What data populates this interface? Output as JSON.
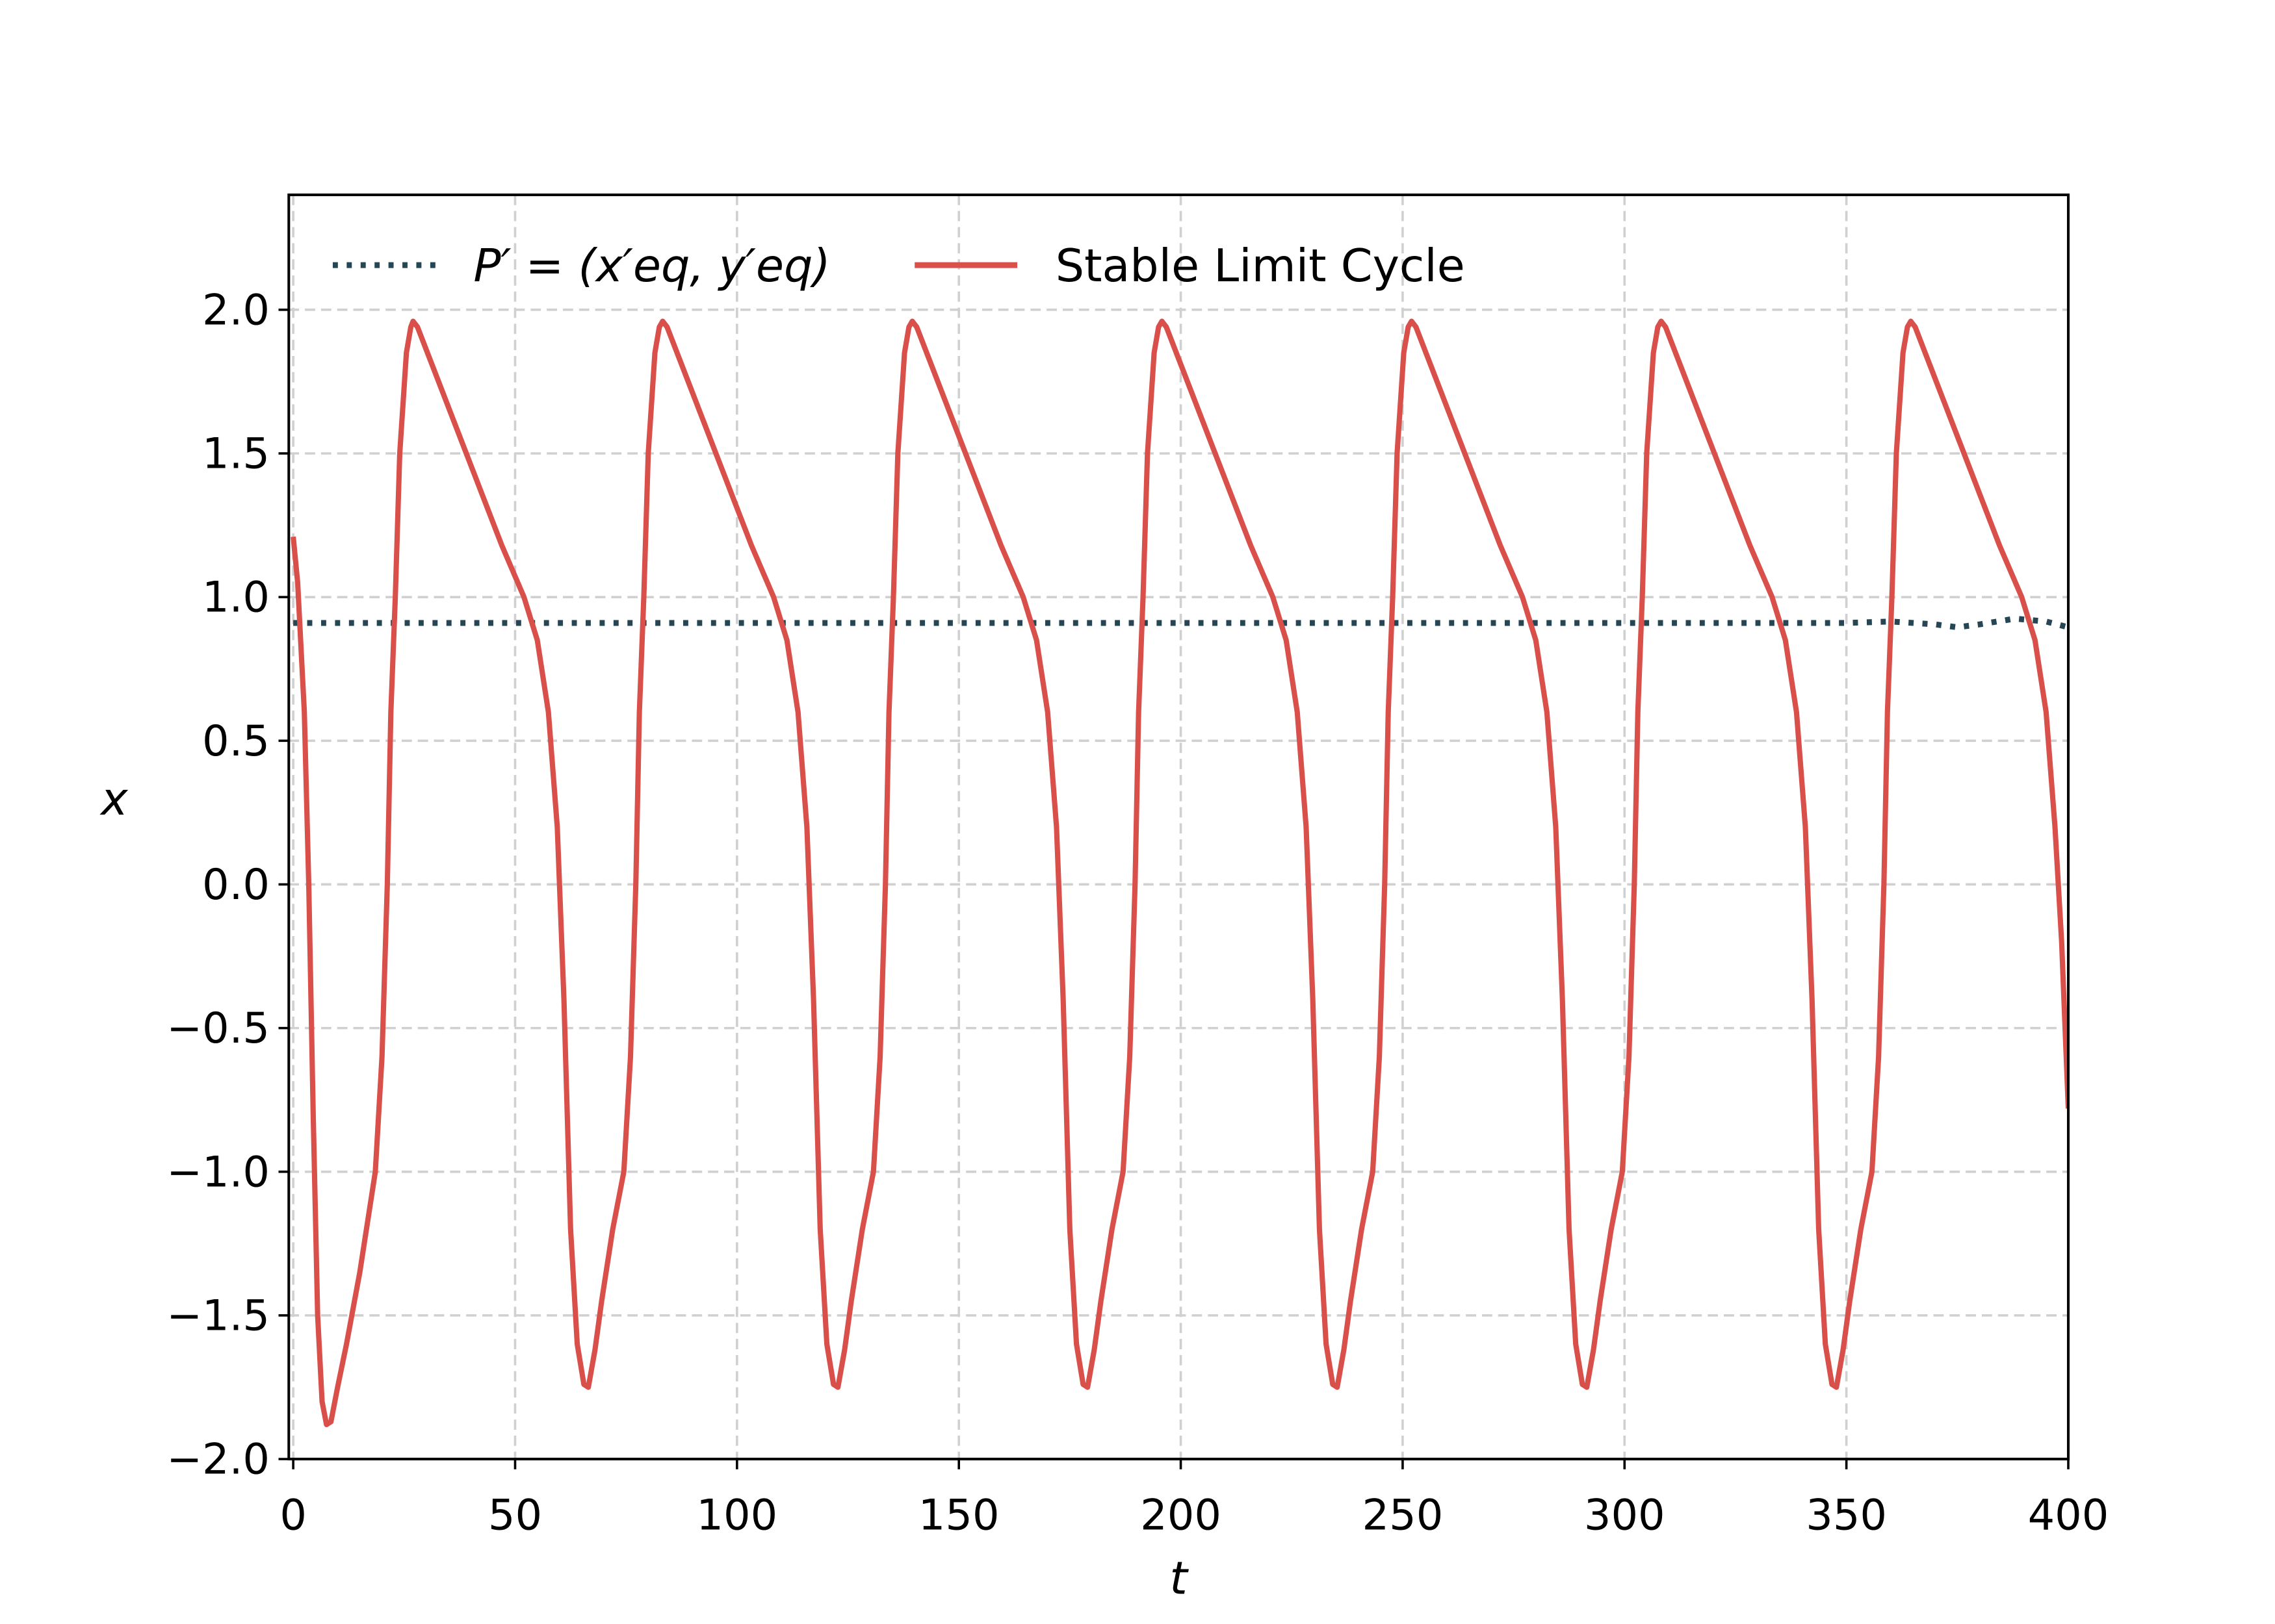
{
  "chart_data": {
    "type": "line",
    "xlabel": "t",
    "ylabel": "x",
    "xlim": [
      -1,
      400
    ],
    "ylim": [
      -2,
      2.4
    ],
    "xticks": [
      0,
      50,
      100,
      150,
      200,
      250,
      300,
      350,
      400
    ],
    "yticks": [
      {
        "value": -2.0,
        "label": "−2.0"
      },
      {
        "value": -1.5,
        "label": "−1.5"
      },
      {
        "value": -1.0,
        "label": "−1.0"
      },
      {
        "value": -0.5,
        "label": "−0.5"
      },
      {
        "value": 0.0,
        "label": "0.0"
      },
      {
        "value": 0.5,
        "label": "0.5"
      },
      {
        "value": 1.0,
        "label": "1.0"
      },
      {
        "value": 1.5,
        "label": "1.5"
      },
      {
        "value": 2.0,
        "label": "2.0"
      }
    ],
    "grid": true,
    "legend": "upper left",
    "series": [
      {
        "name": "P′ = (x′eq, y′eq)",
        "color": "#264653",
        "style": "dotted",
        "x": [
          0,
          100,
          200,
          300,
          350,
          360,
          370,
          375,
          380,
          388,
          395,
          400
        ],
        "values": [
          0.91,
          0.91,
          0.91,
          0.91,
          0.91,
          0.915,
          0.905,
          0.895,
          0.905,
          0.925,
          0.915,
          0.895
        ]
      },
      {
        "name": "Stable Limit Cycle",
        "color": "#d94f4a",
        "style": "solid",
        "x": [
          0,
          1,
          2.5,
          3.5,
          4.5,
          5.5,
          6.5,
          7.5,
          8.5,
          10,
          12,
          15,
          18.5,
          20,
          21.2,
          22,
          23,
          24,
          25.5,
          26.5,
          27,
          28,
          32,
          37,
          42,
          47,
          52,
          55,
          57.5,
          59.5,
          61,
          62.5,
          64,
          65.5,
          66.5,
          68,
          69.5,
          72,
          74.5,
          76,
          77.2,
          78,
          79,
          80,
          81.5,
          82.5,
          83.25,
          84.25,
          88.25,
          93.25,
          98.25,
          103.25,
          108.25,
          111.25,
          113.75,
          115.75,
          117.25,
          118.75,
          120.25,
          121.75,
          122.75,
          124.25,
          125.75,
          128.25,
          130.75,
          132.25,
          133.45,
          134.25,
          135.25,
          136.25,
          137.75,
          138.75,
          139.5,
          140.5,
          144.5,
          149.5,
          154.5,
          159.5,
          164.5,
          167.5,
          170,
          172,
          173.5,
          175,
          176.5,
          178,
          179,
          180.5,
          182,
          184.5,
          187,
          188.5,
          189.7,
          190.5,
          191.5,
          192.5,
          194,
          195,
          195.75,
          196.75,
          200.75,
          205.75,
          210.75,
          215.75,
          220.75,
          223.75,
          226.25,
          228.25,
          229.75,
          231.25,
          232.75,
          234.25,
          235.25,
          236.75,
          238.25,
          240.75,
          243.25,
          244.75,
          245.95,
          246.75,
          247.75,
          248.75,
          250.25,
          251.25,
          252,
          253,
          257,
          262,
          267,
          272,
          277,
          280,
          282.5,
          284.5,
          286,
          287.5,
          289,
          290.5,
          291.5,
          293,
          294.5,
          297,
          299.5,
          301,
          302.2,
          303,
          304,
          305,
          306.5,
          307.5,
          308.25,
          309.25,
          313.25,
          318.25,
          323.25,
          328.25,
          333.25,
          336.25,
          338.75,
          340.75,
          342.25,
          343.75,
          345.25,
          346.75,
          347.75,
          349.25,
          350.75,
          353.25,
          355.75,
          357.25,
          358.45,
          359.25,
          360.25,
          361.25,
          362.75,
          363.75,
          364.5,
          365.5,
          369.5,
          374.5,
          379.5,
          384.5,
          389.5,
          392.5,
          395,
          397,
          398.5,
          400
        ],
        "values": [
          1.21,
          1.05,
          0.6,
          0.0,
          -0.8,
          -1.5,
          -1.8,
          -1.88,
          -1.87,
          -1.75,
          -1.6,
          -1.35,
          -1.0,
          -0.6,
          0.0,
          0.6,
          1.0,
          1.5,
          1.85,
          1.94,
          1.96,
          1.94,
          1.78,
          1.58,
          1.38,
          1.18,
          1.0,
          0.85,
          0.6,
          0.2,
          -0.4,
          -1.2,
          -1.6,
          -1.74,
          -1.75,
          -1.62,
          -1.45,
          -1.2,
          -1.0,
          -0.6,
          0.0,
          0.6,
          1.0,
          1.5,
          1.85,
          1.94,
          1.96,
          1.94,
          1.78,
          1.58,
          1.38,
          1.18,
          1.0,
          0.85,
          0.6,
          0.2,
          -0.4,
          -1.2,
          -1.6,
          -1.74,
          -1.75,
          -1.62,
          -1.45,
          -1.2,
          -1.0,
          -0.6,
          0.0,
          0.6,
          1.0,
          1.5,
          1.85,
          1.94,
          1.96,
          1.94,
          1.78,
          1.58,
          1.38,
          1.18,
          1.0,
          0.85,
          0.6,
          0.2,
          -0.4,
          -1.2,
          -1.6,
          -1.74,
          -1.75,
          -1.62,
          -1.45,
          -1.2,
          -1.0,
          -0.6,
          0.0,
          0.6,
          1.0,
          1.5,
          1.85,
          1.94,
          1.96,
          1.94,
          1.78,
          1.58,
          1.38,
          1.18,
          1.0,
          0.85,
          0.6,
          0.2,
          -0.4,
          -1.2,
          -1.6,
          -1.74,
          -1.75,
          -1.62,
          -1.45,
          -1.2,
          -1.0,
          -0.6,
          0.0,
          0.6,
          1.0,
          1.5,
          1.85,
          1.94,
          1.96,
          1.94,
          1.78,
          1.58,
          1.38,
          1.18,
          1.0,
          0.85,
          0.6,
          0.2,
          -0.4,
          -1.2,
          -1.6,
          -1.74,
          -1.75,
          -1.62,
          -1.45,
          -1.2,
          -1.0,
          -0.6,
          0.0,
          0.6,
          1.0,
          1.5,
          1.85,
          1.94,
          1.96,
          1.94,
          1.78,
          1.58,
          1.38,
          1.18,
          1.0,
          0.85,
          0.6,
          0.2,
          -0.4,
          -1.2,
          -1.6,
          -1.74,
          -1.75,
          -1.62,
          -1.45,
          -1.2,
          -1.0,
          -0.6,
          0.0,
          0.6,
          1.0,
          1.5,
          1.85,
          1.94,
          1.96,
          1.94,
          1.78,
          1.58,
          1.38,
          1.18,
          1.0,
          0.85,
          0.6,
          0.2,
          -0.2,
          -0.78
        ]
      }
    ]
  }
}
